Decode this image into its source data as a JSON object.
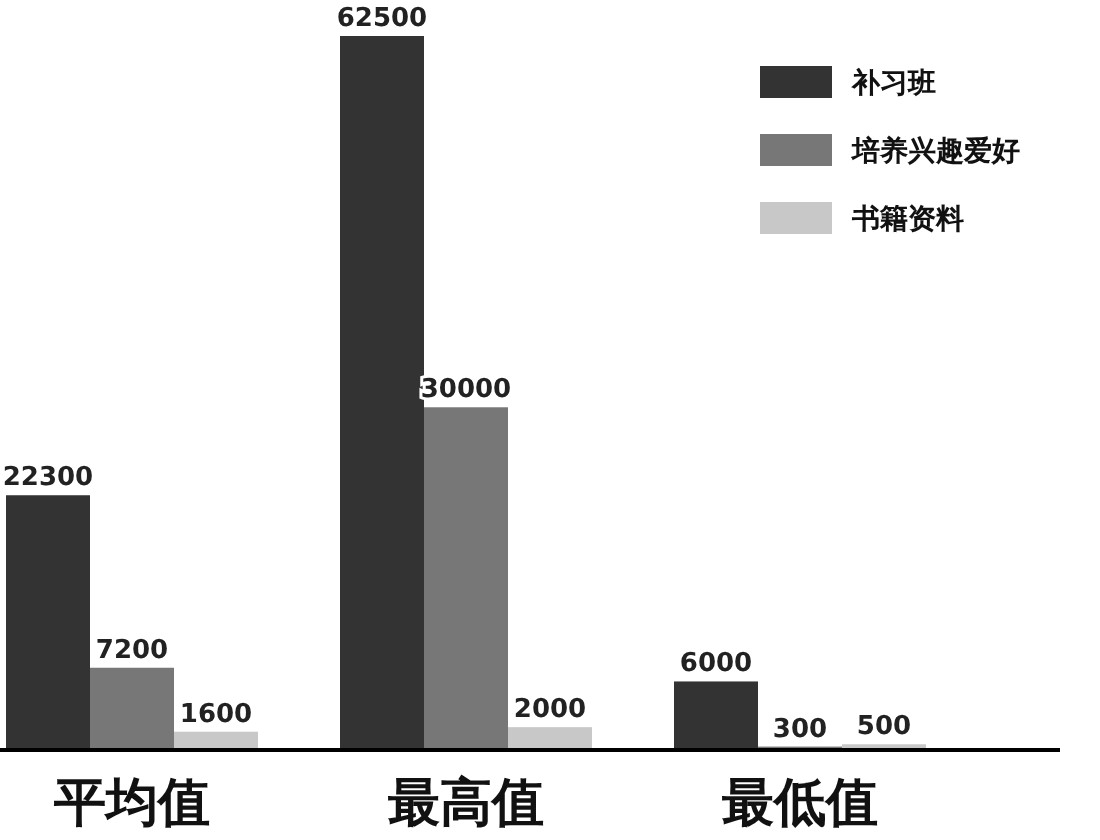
{
  "chart_data": {
    "type": "bar",
    "categories": [
      "平均值",
      "最高值",
      "最低值"
    ],
    "series": [
      {
        "name": "补习班",
        "color": "#333333",
        "values": [
          22300,
          62500,
          6000
        ]
      },
      {
        "name": "培养兴趣爱好",
        "color": "#777777",
        "values": [
          7200,
          30000,
          300
        ]
      },
      {
        "name": "书籍资料",
        "color": "#c8c8c8",
        "values": [
          1600,
          2000,
          500
        ]
      }
    ],
    "data_labels": true,
    "legend": "top right"
  }
}
